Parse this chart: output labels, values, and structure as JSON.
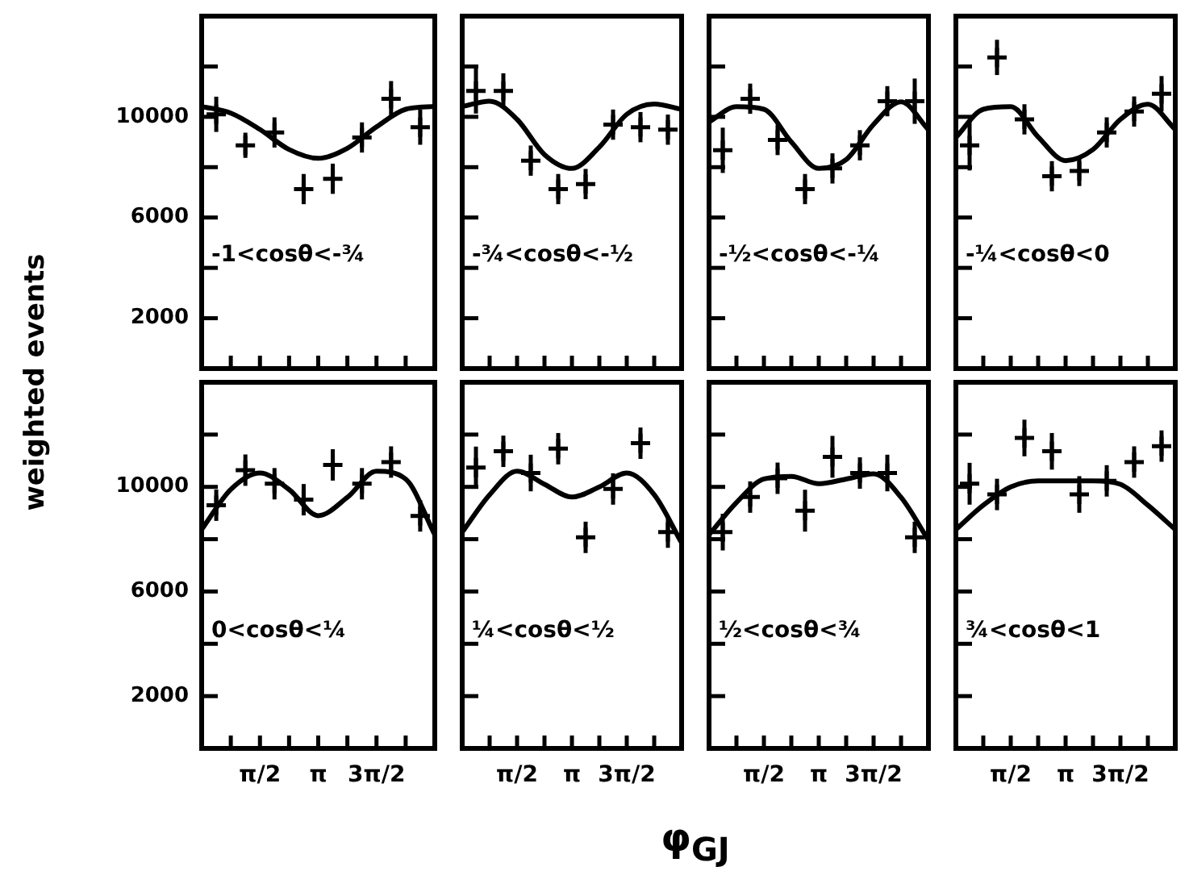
{
  "chart_data": [
    {
      "type": "scatter",
      "ylabel": "weighted events",
      "annotations": [
        "-1<cosθ<-¾"
      ],
      "tick_labels": "y",
      "xlim": [
        0,
        6.283
      ],
      "ylim": [
        0,
        14000
      ],
      "xticks": [
        {
          "value": 0.785,
          "label": null
        },
        {
          "value": 1.571,
          "label": null
        },
        {
          "value": 2.356,
          "label": null
        },
        {
          "value": 3.142,
          "label": null
        },
        {
          "value": 3.927,
          "label": null
        },
        {
          "value": 4.712,
          "label": null
        },
        {
          "value": 5.498,
          "label": null
        }
      ],
      "yticks": [
        2000,
        {
          "value": 4000,
          "label": null
        },
        6000,
        {
          "value": 8000,
          "label": null
        },
        10000,
        {
          "value": 12000,
          "label": null
        }
      ],
      "series": [
        {
          "type": "line",
          "color": "#000000",
          "x": [
            0,
            0.785,
            1.571,
            2.356,
            3.142,
            3.927,
            4.712,
            5.498,
            6.283
          ],
          "values": [
            10410,
            10150,
            9500,
            8700,
            8350,
            8750,
            9600,
            10300,
            10410
          ]
        },
        {
          "type": "scatter",
          "marker": "cross",
          "color": "#000000",
          "x": [
            0.393,
            1.178,
            1.963,
            2.749,
            3.534,
            4.32,
            5.105,
            5.89
          ],
          "values": [
            10100,
            8870,
            9380,
            7130,
            7540,
            9180,
            10720,
            9590
          ],
          "errors": [
            700,
            500,
            600,
            600,
            600,
            600,
            700,
            700
          ]
        }
      ]
    },
    {
      "type": "scatter",
      "annotations": [
        "-¾<cosθ<-½"
      ],
      "tick_labels": false,
      "xlim": [
        0,
        6.283
      ],
      "ylim": [
        0,
        14000
      ],
      "xticks": [
        {
          "value": 0.785,
          "label": null
        },
        {
          "value": 1.571,
          "label": null
        },
        {
          "value": 2.356,
          "label": null
        },
        {
          "value": 3.142,
          "label": null
        },
        {
          "value": 3.927,
          "label": null
        },
        {
          "value": 4.712,
          "label": null
        },
        {
          "value": 5.498,
          "label": null
        }
      ],
      "yticks": [
        {
          "value": 2000,
          "label": null
        },
        {
          "value": 4000,
          "label": null
        },
        {
          "value": 6000,
          "label": null
        },
        {
          "value": 8000,
          "label": null
        },
        {
          "value": 10000,
          "label": null
        },
        {
          "value": 12000,
          "label": null
        }
      ],
      "series": [
        {
          "type": "line",
          "color": "#000000",
          "x": [
            0,
            0.785,
            1.571,
            2.356,
            3.142,
            3.927,
            4.712,
            5.498,
            6.283
          ],
          "values": [
            10410,
            10620,
            9900,
            8500,
            7950,
            8800,
            10100,
            10510,
            10300
          ]
        },
        {
          "type": "scatter",
          "marker": "cross",
          "color": "#000000",
          "x": [
            0.393,
            1.178,
            1.963,
            2.749,
            3.534,
            4.32,
            5.105,
            5.89
          ],
          "values": [
            11030,
            11030,
            8260,
            7130,
            7330,
            9690,
            9590,
            9490
          ],
          "errors": [
            900,
            700,
            600,
            600,
            600,
            600,
            600,
            600
          ]
        }
      ]
    },
    {
      "type": "scatter",
      "annotations": [
        "-½<cosθ<-¼"
      ],
      "tick_labels": false,
      "xlim": [
        0,
        6.283
      ],
      "ylim": [
        0,
        14000
      ],
      "xticks": [
        {
          "value": 0.785,
          "label": null
        },
        {
          "value": 1.571,
          "label": null
        },
        {
          "value": 2.356,
          "label": null
        },
        {
          "value": 3.142,
          "label": null
        },
        {
          "value": 3.927,
          "label": null
        },
        {
          "value": 4.712,
          "label": null
        },
        {
          "value": 5.498,
          "label": null
        }
      ],
      "yticks": [
        {
          "value": 2000,
          "label": null
        },
        {
          "value": 4000,
          "label": null
        },
        {
          "value": 6000,
          "label": null
        },
        {
          "value": 8000,
          "label": null
        },
        {
          "value": 10000,
          "label": null
        },
        {
          "value": 12000,
          "label": null
        }
      ],
      "series": [
        {
          "type": "line",
          "color": "#000000",
          "x": [
            0,
            0.785,
            1.571,
            2.356,
            3.142,
            3.927,
            4.712,
            5.498,
            6.283
          ],
          "values": [
            9800,
            10400,
            10300,
            9000,
            7950,
            8300,
            9700,
            10600,
            9490
          ]
        },
        {
          "type": "scatter",
          "marker": "cross",
          "color": "#000000",
          "x": [
            0.393,
            1.178,
            1.963,
            2.749,
            3.534,
            4.32,
            5.105,
            5.89
          ],
          "values": [
            8670,
            10720,
            9080,
            7130,
            7950,
            8870,
            10620,
            10620
          ],
          "errors": [
            900,
            600,
            600,
            600,
            600,
            600,
            600,
            900
          ]
        }
      ]
    },
    {
      "type": "scatter",
      "annotations": [
        "-¼<cosθ<0"
      ],
      "tick_labels": false,
      "xlim": [
        0,
        6.283
      ],
      "ylim": [
        0,
        14000
      ],
      "xticks": [
        {
          "value": 0.785,
          "label": null
        },
        {
          "value": 1.571,
          "label": null
        },
        {
          "value": 2.356,
          "label": null
        },
        {
          "value": 3.142,
          "label": null
        },
        {
          "value": 3.927,
          "label": null
        },
        {
          "value": 4.712,
          "label": null
        },
        {
          "value": 5.498,
          "label": null
        }
      ],
      "yticks": [
        {
          "value": 2000,
          "label": null
        },
        {
          "value": 4000,
          "label": null
        },
        {
          "value": 6000,
          "label": null
        },
        {
          "value": 8000,
          "label": null
        },
        {
          "value": 10000,
          "label": null
        },
        {
          "value": 12000,
          "label": null
        }
      ],
      "series": [
        {
          "type": "line",
          "color": "#000000",
          "x": [
            0,
            0.785,
            1.571,
            2.356,
            3.142,
            3.927,
            4.712,
            5.498,
            6.283
          ],
          "values": [
            9180,
            10300,
            10400,
            9200,
            8260,
            8700,
            9900,
            10500,
            9500
          ]
        },
        {
          "type": "scatter",
          "marker": "cross",
          "color": "#000000",
          "x": [
            0.393,
            1.178,
            1.963,
            2.749,
            3.534,
            4.32,
            5.105,
            5.89
          ],
          "values": [
            8870,
            12360,
            9900,
            7640,
            7850,
            9380,
            10210,
            10920
          ],
          "errors": [
            1000,
            700,
            600,
            600,
            600,
            600,
            600,
            700
          ]
        }
      ]
    },
    {
      "type": "scatter",
      "xlabel": "φ$_{GJ}$",
      "annotations": [
        "0<cosθ<¼"
      ],
      "xlim": [
        0,
        6.283
      ],
      "ylim": [
        0,
        14000
      ],
      "xticks": [
        {
          "value": 0.785,
          "label": null
        },
        {
          "value": 1.571,
          "label": "π/2"
        },
        {
          "value": 2.356,
          "label": null
        },
        {
          "value": 3.142,
          "label": "π"
        },
        {
          "value": 3.927,
          "label": null
        },
        {
          "value": 4.712,
          "label": "3π/2"
        },
        {
          "value": 5.498,
          "label": null
        }
      ],
      "yticks": [
        2000,
        {
          "value": 4000,
          "label": null
        },
        6000,
        {
          "value": 8000,
          "label": null
        },
        10000,
        {
          "value": 12000,
          "label": null
        }
      ],
      "series": [
        {
          "type": "line",
          "color": "#000000",
          "x": [
            0,
            0.785,
            1.571,
            2.356,
            3.142,
            3.927,
            4.712,
            5.498,
            6.283
          ],
          "values": [
            8370,
            9900,
            10530,
            9900,
            8900,
            9600,
            10600,
            10300,
            8170
          ]
        },
        {
          "type": "scatter",
          "marker": "cross",
          "color": "#000000",
          "x": [
            0.393,
            1.178,
            1.963,
            2.749,
            3.534,
            4.32,
            5.105,
            5.89
          ],
          "values": [
            9300,
            10640,
            10120,
            9510,
            10840,
            10120,
            10950,
            8890
          ],
          "errors": [
            600,
            600,
            600,
            600,
            600,
            600,
            600,
            600
          ]
        }
      ]
    },
    {
      "type": "scatter",
      "annotations": [
        "¼<cosθ<½"
      ],
      "tick_labels": "x",
      "xlim": [
        0,
        6.283
      ],
      "ylim": [
        0,
        14000
      ],
      "xticks": [
        {
          "value": 0.785,
          "label": null
        },
        {
          "value": 1.571,
          "label": "π/2"
        },
        {
          "value": 2.356,
          "label": null
        },
        {
          "value": 3.142,
          "label": "π"
        },
        {
          "value": 3.927,
          "label": null
        },
        {
          "value": 4.712,
          "label": "3π/2"
        },
        {
          "value": 5.498,
          "label": null
        }
      ],
      "yticks": [
        {
          "value": 2000,
          "label": null
        },
        {
          "value": 4000,
          "label": null
        },
        {
          "value": 6000,
          "label": null
        },
        {
          "value": 8000,
          "label": null
        },
        {
          "value": 10000,
          "label": null
        },
        {
          "value": 12000,
          "label": null
        }
      ],
      "series": [
        {
          "type": "line",
          "color": "#000000",
          "x": [
            0,
            0.785,
            1.571,
            2.356,
            3.142,
            3.927,
            4.712,
            5.498,
            6.283
          ],
          "values": [
            8270,
            9700,
            10600,
            10100,
            9610,
            10000,
            10530,
            9700,
            7860
          ]
        },
        {
          "type": "scatter",
          "marker": "cross",
          "color": "#000000",
          "x": [
            0.393,
            1.178,
            1.963,
            2.749,
            3.534,
            4.32,
            5.105,
            5.89
          ],
          "values": [
            10740,
            11360,
            10530,
            11460,
            8070,
            9920,
            11670,
            8270
          ],
          "errors": [
            800,
            600,
            700,
            600,
            600,
            600,
            600,
            600
          ]
        }
      ]
    },
    {
      "type": "scatter",
      "annotations": [
        "½<cosθ<¾"
      ],
      "tick_labels": "x",
      "xlim": [
        0,
        6.283
      ],
      "ylim": [
        0,
        14000
      ],
      "xticks": [
        {
          "value": 0.785,
          "label": null
        },
        {
          "value": 1.571,
          "label": "π/2"
        },
        {
          "value": 2.356,
          "label": null
        },
        {
          "value": 3.142,
          "label": "π"
        },
        {
          "value": 3.927,
          "label": null
        },
        {
          "value": 4.712,
          "label": "3π/2"
        },
        {
          "value": 5.498,
          "label": null
        }
      ],
      "yticks": [
        {
          "value": 2000,
          "label": null
        },
        {
          "value": 4000,
          "label": null
        },
        {
          "value": 6000,
          "label": null
        },
        {
          "value": 8000,
          "label": null
        },
        {
          "value": 10000,
          "label": null
        },
        {
          "value": 12000,
          "label": null
        }
      ],
      "series": [
        {
          "type": "line",
          "color": "#000000",
          "x": [
            0,
            0.785,
            1.571,
            2.356,
            3.142,
            3.927,
            4.712,
            5.498,
            6.283
          ],
          "values": [
            8170,
            9400,
            10300,
            10400,
            10120,
            10300,
            10500,
            9600,
            7960
          ]
        },
        {
          "type": "scatter",
          "marker": "cross",
          "color": "#000000",
          "x": [
            0.393,
            1.178,
            1.963,
            2.749,
            3.534,
            4.32,
            5.105,
            5.89
          ],
          "values": [
            8270,
            9610,
            10330,
            9090,
            11150,
            10530,
            10530,
            8070
          ],
          "errors": [
            700,
            600,
            600,
            800,
            800,
            600,
            700,
            600
          ]
        }
      ]
    },
    {
      "type": "scatter",
      "annotations": [
        "¾<cosθ<1"
      ],
      "tick_labels": "x",
      "xlim": [
        0,
        6.283
      ],
      "ylim": [
        0,
        14000
      ],
      "xticks": [
        {
          "value": 0.785,
          "label": null
        },
        {
          "value": 1.571,
          "label": "π/2"
        },
        {
          "value": 2.356,
          "label": null
        },
        {
          "value": 3.142,
          "label": "π"
        },
        {
          "value": 3.927,
          "label": null
        },
        {
          "value": 4.712,
          "label": "3π/2"
        },
        {
          "value": 5.498,
          "label": null
        }
      ],
      "yticks": [
        {
          "value": 2000,
          "label": null
        },
        {
          "value": 4000,
          "label": null
        },
        {
          "value": 6000,
          "label": null
        },
        {
          "value": 8000,
          "label": null
        },
        {
          "value": 10000,
          "label": null
        },
        {
          "value": 12000,
          "label": null
        }
      ],
      "series": [
        {
          "type": "line",
          "color": "#000000",
          "x": [
            0,
            0.785,
            1.571,
            2.356,
            3.142,
            3.927,
            4.712,
            5.498,
            6.283
          ],
          "values": [
            8370,
            9300,
            10000,
            10230,
            10230,
            10230,
            10100,
            9300,
            8370
          ]
        },
        {
          "type": "scatter",
          "marker": "cross",
          "color": "#000000",
          "x": [
            0.393,
            1.178,
            1.963,
            2.749,
            3.534,
            4.32,
            5.105,
            5.89
          ],
          "values": [
            10120,
            9710,
            11870,
            11360,
            9710,
            10230,
            10950,
            11560
          ],
          "errors": [
            800,
            600,
            700,
            700,
            700,
            600,
            600,
            600
          ]
        }
      ]
    }
  ]
}
